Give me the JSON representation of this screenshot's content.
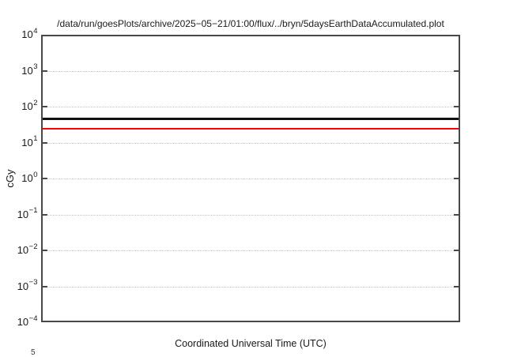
{
  "figure": {
    "background": "#ffffff",
    "partial_next_plot_tick_label": "5"
  },
  "chart_data": {
    "type": "line",
    "title": "/data/run/goesPlots/archive/2025−05−21/01:00/flux/../bryn/5daysEarthDataAccumulated.plot",
    "xlabel": "Coordinated Universal Time (UTC)",
    "ylabel": "cGy",
    "y_scale": "log10",
    "ylim": [
      0.0001,
      10000
    ],
    "ylim_exponents": [
      -4,
      4
    ],
    "y_tick_exponents": [
      4,
      3,
      2,
      1,
      0,
      -1,
      -2,
      -3,
      -4
    ],
    "x_tick_labels": [],
    "grid": {
      "horizontal": "dotted",
      "color": "#c2c2c2"
    },
    "legend": "none",
    "axis_color": "#484848",
    "series": [
      {
        "name": "black-line",
        "color": "#111111",
        "shape": "horizontal-constant",
        "value_cgy": 46,
        "thickness_px": 3
      },
      {
        "name": "red-line",
        "color": "#ff0000",
        "shape": "horizontal-constant",
        "value_cgy": 24,
        "thickness_px": 2.5
      }
    ]
  }
}
